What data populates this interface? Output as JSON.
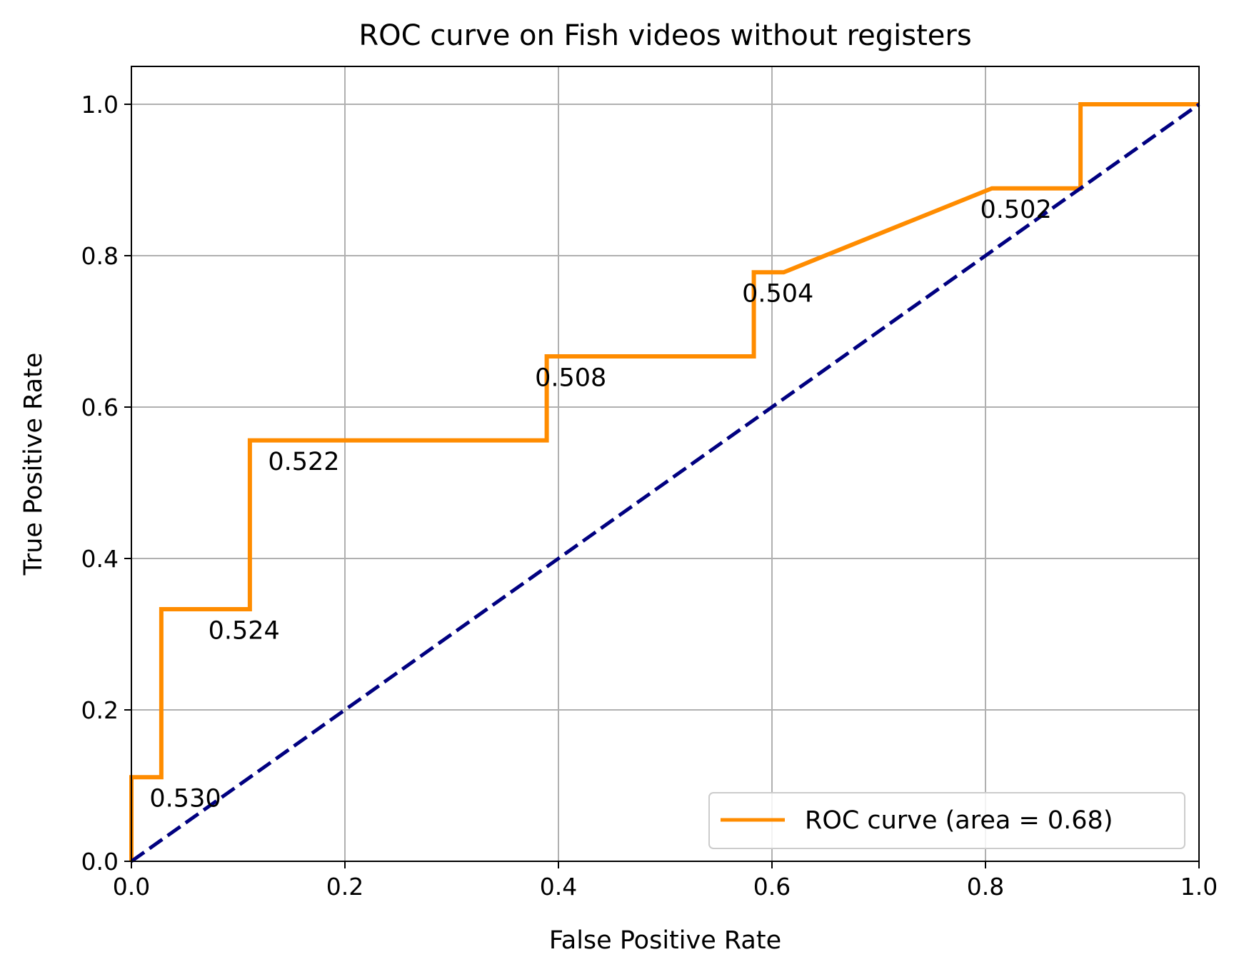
{
  "chart_data": {
    "type": "line",
    "title": "ROC curve on Fish videos without registers",
    "xlabel": "False Positive Rate",
    "ylabel": "True Positive Rate",
    "xlim": [
      0.0,
      1.0
    ],
    "ylim": [
      0.0,
      1.05
    ],
    "grid": true,
    "legend_position": "lower-right",
    "x_ticks": [
      "0.0",
      "0.2",
      "0.4",
      "0.6",
      "0.8",
      "1.0"
    ],
    "y_ticks": [
      "0.0",
      "0.2",
      "0.4",
      "0.6",
      "0.8",
      "1.0"
    ],
    "series": [
      {
        "name": "ROC curve (area = 0.68)",
        "color": "#ff8c00",
        "style": "solid",
        "x": [
          0.0,
          0.0,
          0.028,
          0.028,
          0.111,
          0.111,
          0.389,
          0.389,
          0.583,
          0.583,
          0.611,
          0.806,
          0.889,
          0.889,
          1.0
        ],
        "y": [
          0.0,
          0.111,
          0.111,
          0.333,
          0.333,
          0.556,
          0.556,
          0.667,
          0.667,
          0.778,
          0.778,
          0.889,
          0.889,
          1.0,
          1.0
        ]
      },
      {
        "color": "#000080",
        "style": "dashed",
        "x": [
          0.0,
          1.0
        ],
        "y": [
          0.0,
          1.0
        ]
      }
    ],
    "annotations": [
      {
        "text": "0.530",
        "x": 0.017,
        "y": 0.072
      },
      {
        "text": "0.524",
        "x": 0.072,
        "y": 0.294
      },
      {
        "text": "0.522",
        "x": 0.128,
        "y": 0.517
      },
      {
        "text": "0.508",
        "x": 0.378,
        "y": 0.628
      },
      {
        "text": "0.504",
        "x": 0.572,
        "y": 0.739
      },
      {
        "text": "0.502",
        "x": 0.795,
        "y": 0.85
      }
    ]
  }
}
